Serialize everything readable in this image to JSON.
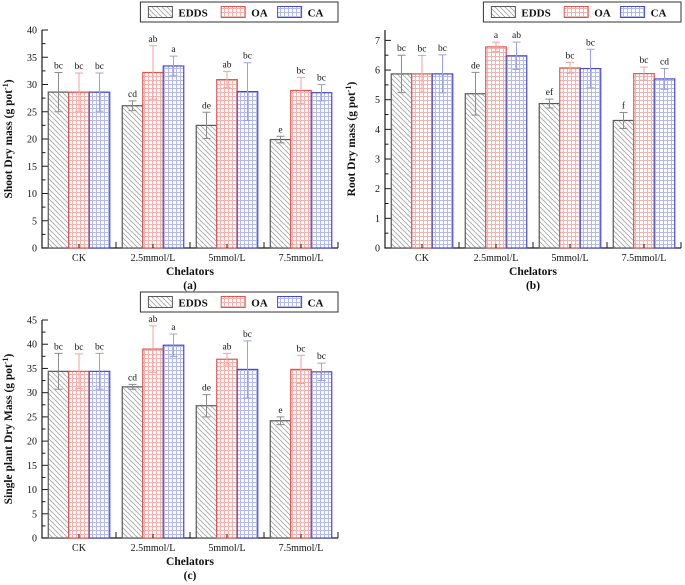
{
  "figure": {
    "background": "#ffffff",
    "legend": {
      "items": [
        {
          "label": "EDDS",
          "pattern": "edds",
          "border": "#595959",
          "hatch_color": "#a8a8a8",
          "error_color": "#8c8c8c"
        },
        {
          "label": "OA",
          "pattern": "oa",
          "border": "#e4544e",
          "hatch_color": "#f2b4b1",
          "error_color": "#f2a29e"
        },
        {
          "label": "CA",
          "pattern": "ca",
          "border": "#4549d0",
          "hatch_color": "#b4baee",
          "error_color": "#9aa0e6"
        }
      ]
    }
  },
  "chart_data": [
    {
      "id": "a",
      "type": "bar",
      "caption": "(a)",
      "xlabel": "Chelators",
      "ylabel": {
        "text": "Shoot Dry mass (g pot",
        "sup": "-1",
        "end": ")"
      },
      "ylim": [
        0,
        40
      ],
      "ytick_step": 5,
      "yheadroom": 0,
      "grid": false,
      "legend_position": "top-right",
      "categories": [
        "CK",
        "2.5mmol/L",
        "5mmol/L",
        "7.5mmol/L"
      ],
      "series": [
        {
          "name": "EDDS",
          "values": [
            28.6,
            26.1,
            22.5,
            19.9
          ],
          "errors": [
            3.6,
            0.9,
            2.4,
            0.6
          ],
          "letters": [
            "bc",
            "cd",
            "de",
            "e"
          ]
        },
        {
          "name": "OA",
          "values": [
            28.6,
            32.2,
            30.9,
            28.9
          ],
          "errors": [
            3.5,
            4.9,
            1.5,
            2.4
          ],
          "letters": [
            "bc",
            "ab",
            "ab",
            "bc"
          ]
        },
        {
          "name": "CA",
          "values": [
            28.6,
            33.4,
            28.7,
            28.5
          ],
          "errors": [
            3.5,
            1.8,
            5.3,
            1.5
          ],
          "letters": [
            "bc",
            "a",
            "bc",
            "bc"
          ]
        }
      ]
    },
    {
      "id": "b",
      "type": "bar",
      "caption": "(b)",
      "xlabel": "Chelators",
      "ylabel": {
        "text": "Root Dry mass (g pot",
        "sup": "-1",
        "end": ")"
      },
      "ylim": [
        0,
        7
      ],
      "ytick_step": 1,
      "yheadroom": 0.05,
      "grid": false,
      "legend_position": "top-right",
      "categories": [
        "CK",
        "2.5mmol/L",
        "5mmol/L",
        "7.5mmol/L"
      ],
      "series": [
        {
          "name": "EDDS",
          "values": [
            5.87,
            5.2,
            4.87,
            4.3
          ],
          "errors": [
            0.63,
            0.72,
            0.15,
            0.27
          ],
          "letters": [
            "bc",
            "de",
            "ef",
            "f"
          ]
        },
        {
          "name": "OA",
          "values": [
            5.87,
            6.78,
            6.07,
            5.88
          ],
          "errors": [
            0.62,
            0.16,
            0.18,
            0.22
          ],
          "letters": [
            "bc",
            "a",
            "bc",
            "bc"
          ]
        },
        {
          "name": "CA",
          "values": [
            5.87,
            6.48,
            6.05,
            5.7
          ],
          "errors": [
            0.64,
            0.46,
            0.65,
            0.35
          ],
          "letters": [
            "bc",
            "ab",
            "bc",
            "cd"
          ]
        }
      ]
    },
    {
      "id": "c",
      "type": "bar",
      "caption": "(c)",
      "xlabel": "Chelators",
      "ylabel": {
        "text": "Single plant Dry Mass (g pot",
        "sup": "-1",
        "end": ")"
      },
      "ylim": [
        0,
        45
      ],
      "ytick_step": 5,
      "yheadroom": 0,
      "grid": false,
      "legend_position": "top-right",
      "categories": [
        "CK",
        "2.5mmol/L",
        "5mmol/L",
        "7.5mmol/L"
      ],
      "series": [
        {
          "name": "EDDS",
          "values": [
            34.4,
            31.2,
            27.3,
            24.2
          ],
          "errors": [
            3.7,
            0.5,
            2.3,
            0.8
          ],
          "letters": [
            "bc",
            "cd",
            "de",
            "e"
          ]
        },
        {
          "name": "OA",
          "values": [
            34.4,
            39.0,
            36.9,
            34.8
          ],
          "errors": [
            3.6,
            4.8,
            1.2,
            2.9
          ],
          "letters": [
            "bc",
            "ab",
            "ab",
            "bc"
          ]
        },
        {
          "name": "CA",
          "values": [
            34.4,
            39.8,
            34.8,
            34.3
          ],
          "errors": [
            3.7,
            2.3,
            5.9,
            1.8
          ],
          "letters": [
            "bc",
            "a",
            "bc",
            "bc"
          ]
        }
      ]
    }
  ]
}
